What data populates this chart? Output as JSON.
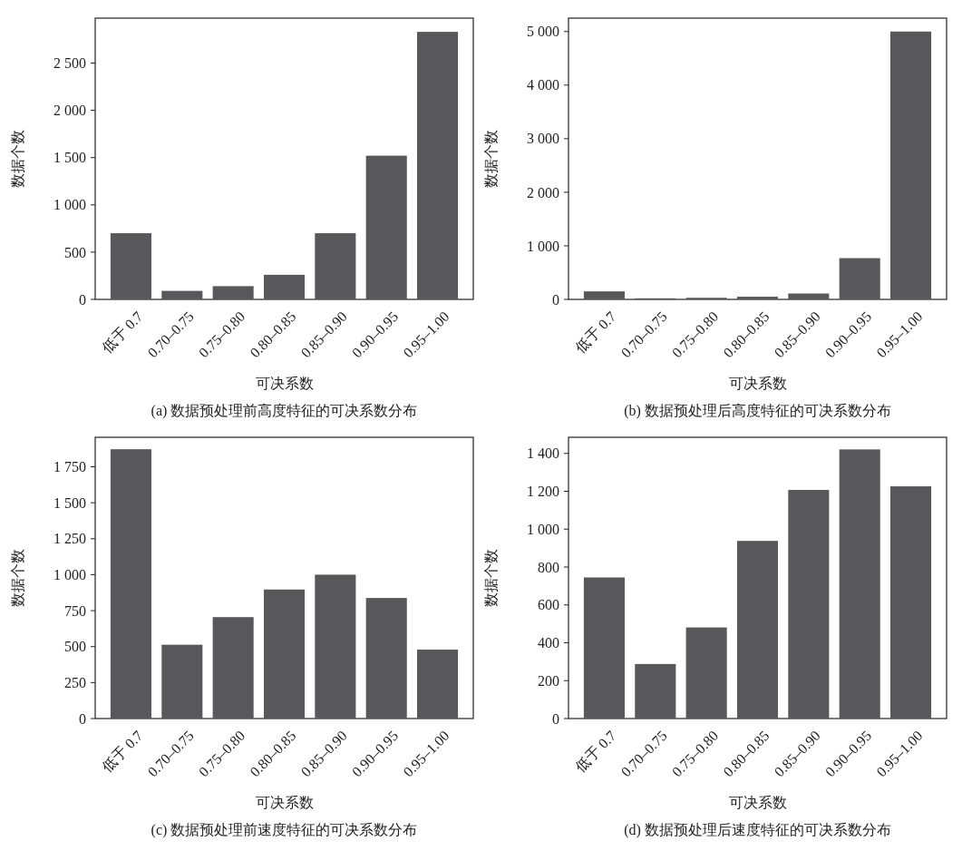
{
  "chart_data": [
    {
      "type": "bar",
      "title": "(a) 数据预处理前高度特征的可决系数分布",
      "xlabel": "可决系数",
      "ylabel": "数据个数",
      "categories": [
        "低于 0.7",
        "0.70–0.75",
        "0.75–0.80",
        "0.80–0.85",
        "0.85–0.90",
        "0.90–0.95",
        "0.95–1.00"
      ],
      "values": [
        700,
        90,
        140,
        260,
        700,
        1520,
        2830
      ],
      "color": "#58585a",
      "ylim": [
        0,
        2975
      ],
      "yticks": [
        0,
        500,
        {
          "value": 1000,
          "label": "1 000"
        },
        {
          "value": 1500,
          "label": "1 500"
        },
        {
          "value": 2000,
          "label": "2 000"
        },
        {
          "value": 2500,
          "label": "2 500"
        }
      ],
      "grid": false
    },
    {
      "type": "bar",
      "title": "(b) 数据预处理后高度特征的可决系数分布",
      "xlabel": "可决系数",
      "ylabel": "数据个数",
      "categories": [
        "低于 0.7",
        "0.70–0.75",
        "0.75–0.80",
        "0.80–0.85",
        "0.85–0.90",
        "0.90–0.95",
        "0.95–1.00"
      ],
      "values": [
        150,
        20,
        30,
        50,
        110,
        770,
        5000
      ],
      "color": "#58585a",
      "ylim": [
        0,
        5250
      ],
      "yticks": [
        0,
        {
          "value": 1000,
          "label": "1 000"
        },
        {
          "value": 2000,
          "label": "2 000"
        },
        {
          "value": 3000,
          "label": "3 000"
        },
        {
          "value": 4000,
          "label": "4 000"
        },
        {
          "value": 5000,
          "label": "5 000"
        }
      ],
      "grid": false
    },
    {
      "type": "bar",
      "title": "(c) 数据预处理前速度特征的可决系数分布",
      "xlabel": "可决系数",
      "ylabel": "数据个数",
      "categories": [
        "低于 0.7",
        "0.70–0.75",
        "0.75–0.80",
        "0.80–0.85",
        "0.85–0.90",
        "0.90–0.95",
        "0.95–1.00"
      ],
      "values": [
        1872,
        513,
        705,
        897,
        1000,
        838,
        479
      ],
      "color": "#58585a",
      "ylim": [
        0,
        1955
      ],
      "yticks": [
        0,
        250,
        500,
        750,
        {
          "value": 1000,
          "label": "1 000"
        },
        {
          "value": 1250,
          "label": "1 250"
        },
        {
          "value": 1500,
          "label": "1 500"
        },
        {
          "value": 1750,
          "label": "1 750"
        }
      ],
      "grid": false
    },
    {
      "type": "bar",
      "title": "(d) 数据预处理后速度特征的可决系数分布",
      "xlabel": "可决系数",
      "ylabel": "数据个数",
      "categories": [
        "低于 0.7",
        "0.70–0.75",
        "0.75–0.80",
        "0.80–0.85",
        "0.85–0.90",
        "0.90–0.95",
        "0.95–1.00"
      ],
      "values": [
        745,
        288,
        481,
        938,
        1207,
        1421,
        1226
      ],
      "color": "#58585a",
      "ylim": [
        0,
        1485
      ],
      "yticks": [
        0,
        200,
        400,
        600,
        800,
        {
          "value": 1000,
          "label": "1 000"
        },
        {
          "value": 1200,
          "label": "1 200"
        },
        {
          "value": 1400,
          "label": "1 400"
        }
      ],
      "grid": false
    }
  ]
}
